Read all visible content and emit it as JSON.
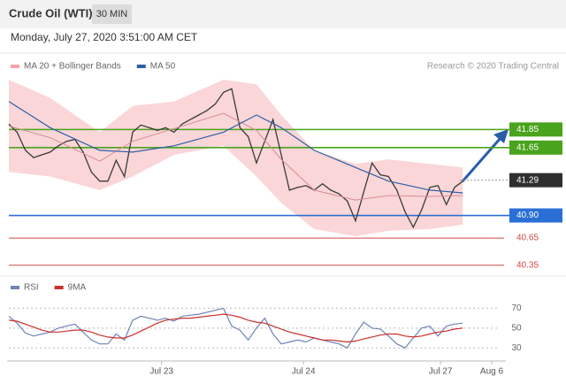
{
  "header": {
    "title": "Crude Oil (WTI)",
    "timeframe": "30 MIN",
    "subtitle": "Monday, July 27, 2020 3:51:00 AM CET",
    "source": "Research © 2020 Trading Central"
  },
  "chart_data": [
    {
      "type": "line",
      "x": [
        0,
        1,
        2,
        3,
        4,
        5,
        6,
        7,
        8,
        9,
        10,
        11,
        12,
        13,
        14,
        15,
        16,
        17,
        18,
        19,
        20,
        21,
        22,
        23,
        24,
        25,
        26,
        27,
        28,
        29,
        30,
        31,
        32,
        33,
        34,
        35,
        36,
        37,
        38,
        39,
        40,
        41,
        42,
        43,
        44,
        45,
        46,
        47,
        48,
        49,
        50,
        51,
        52,
        53,
        54,
        55
      ],
      "values": [
        41.91,
        41.82,
        41.62,
        41.54,
        41.57,
        41.6,
        41.67,
        41.72,
        41.74,
        41.6,
        41.38,
        41.28,
        41.28,
        41.51,
        41.33,
        41.82,
        41.9,
        41.87,
        41.84,
        41.87,
        41.82,
        41.91,
        41.96,
        42.01,
        42.06,
        42.13,
        42.26,
        42.3,
        41.87,
        41.77,
        41.48,
        41.72,
        41.96,
        41.57,
        41.18,
        41.21,
        41.23,
        41.18,
        41.25,
        41.18,
        41.14,
        41.06,
        40.84,
        41.16,
        41.48,
        41.35,
        41.33,
        41.18,
        40.94,
        40.77,
        40.96,
        41.21,
        41.23,
        41.02,
        41.21,
        41.28
      ],
      "color": "#3a3a3a",
      "series": [
        {
          "name": "MA 20 + Bollinger Bands",
          "color": "#f3a3a8",
          "x": [
            0,
            5,
            11,
            15,
            20,
            26,
            30,
            33,
            37,
            42,
            46,
            51,
            55
          ],
          "values": [
            41.89,
            41.76,
            41.5,
            41.72,
            41.86,
            42.03,
            41.84,
            41.52,
            41.18,
            41.07,
            41.12,
            41.11,
            41.12
          ],
          "upper": [
            42.4,
            42.2,
            41.82,
            42.11,
            42.16,
            42.4,
            42.35,
            42.01,
            41.62,
            41.47,
            41.52,
            41.47,
            41.43
          ],
          "lower": [
            41.38,
            41.33,
            41.18,
            41.33,
            41.57,
            41.67,
            41.33,
            41.04,
            40.75,
            40.67,
            40.73,
            40.75,
            40.8
          ]
        },
        {
          "name": "MA 50",
          "color": "#2e5fa8",
          "x": [
            0,
            5,
            11,
            15,
            20,
            26,
            30,
            33,
            37,
            42,
            46,
            51,
            55
          ],
          "values": [
            42.16,
            41.87,
            41.62,
            41.6,
            41.67,
            41.82,
            42.01,
            41.87,
            41.62,
            41.43,
            41.28,
            41.18,
            41.15
          ]
        }
      ],
      "levels": [
        {
          "value": 41.85,
          "color": "#4aa31c",
          "boxed": true
        },
        {
          "value": 41.65,
          "color": "#4aa31c",
          "boxed": true
        },
        {
          "value": 41.29,
          "color": "#2f2f2f",
          "boxed": true,
          "dotted": true
        },
        {
          "value": 40.9,
          "label": "40.90",
          "color": "#2a6fd6",
          "boxed": true
        },
        {
          "value": 40.65,
          "color": "#d04848",
          "boxed": false
        },
        {
          "value": 40.35,
          "color": "#d04848",
          "boxed": false
        }
      ],
      "xlim": [
        0,
        60
      ],
      "ylim": [
        40.25,
        42.45
      ]
    },
    {
      "type": "line",
      "x": [
        0,
        1,
        2,
        3,
        4,
        5,
        6,
        7,
        8,
        9,
        10,
        11,
        12,
        13,
        14,
        15,
        16,
        17,
        18,
        19,
        20,
        21,
        22,
        23,
        24,
        25,
        26,
        27,
        28,
        29,
        30,
        31,
        32,
        33,
        34,
        35,
        36,
        37,
        38,
        39,
        40,
        41,
        42,
        43,
        44,
        45,
        46,
        47,
        48,
        49,
        50,
        51,
        52,
        53,
        54,
        55
      ],
      "series": [
        {
          "name": "RSI",
          "color": "#7083b5",
          "values": [
            62,
            55,
            45,
            42,
            44,
            46,
            50,
            52,
            54,
            46,
            38,
            34,
            34,
            44,
            38,
            58,
            62,
            60,
            58,
            60,
            57,
            62,
            63,
            64,
            66,
            68,
            70,
            52,
            48,
            38,
            50,
            60,
            44,
            34,
            36,
            38,
            36,
            40,
            38,
            36,
            34,
            30,
            44,
            56,
            50,
            49,
            42,
            34,
            30,
            40,
            50,
            52,
            42,
            52,
            54,
            55
          ]
        },
        {
          "name": "9MA",
          "color": "#c9302c",
          "values": [
            58,
            57,
            54,
            51,
            48,
            46,
            46,
            47,
            48,
            48,
            46,
            43,
            41,
            40,
            40,
            43,
            47,
            51,
            55,
            58,
            59,
            60,
            60,
            61,
            62,
            63,
            64,
            63,
            61,
            58,
            56,
            55,
            52,
            49,
            46,
            44,
            42,
            40,
            38,
            38,
            37,
            36,
            37,
            39,
            41,
            43,
            44,
            44,
            42,
            41,
            42,
            44,
            46,
            47,
            49,
            50
          ]
        }
      ],
      "xlim": [
        0,
        60
      ],
      "ylim": [
        15,
        82
      ],
      "yticks": [
        30,
        50,
        70
      ],
      "grid": true,
      "xticks": [
        {
          "value": 18.5,
          "label": "Jul 23"
        },
        {
          "value": 35.7,
          "label": "Jul 24"
        },
        {
          "value": 52.3,
          "label": "Jul 27"
        },
        {
          "value": 58.5,
          "label": "Aug 6"
        }
      ]
    }
  ]
}
